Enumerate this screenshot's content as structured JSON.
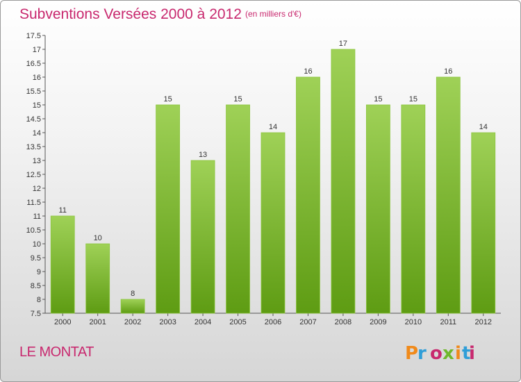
{
  "title": "Subventions Versées 2000 à 2012",
  "unit_note": "(en milliers d'€)",
  "commune": "LE MONTAT",
  "logo": {
    "text": "Proxiti",
    "colors": [
      "#f08a1a",
      "#2f9ed8",
      "#c8286e",
      "#6fb82b",
      "#f08a1a",
      "#2f9ed8",
      "#c8286e"
    ]
  },
  "colors": {
    "title": "#c8286e",
    "bar_top": "#9fd157",
    "bar_bottom": "#5e9c13"
  },
  "chart_data": {
    "type": "bar",
    "categories": [
      "2000",
      "2001",
      "2002",
      "2003",
      "2004",
      "2005",
      "2006",
      "2007",
      "2008",
      "2009",
      "2010",
      "2011",
      "2012"
    ],
    "values": [
      11,
      10,
      8,
      15,
      13,
      15,
      14,
      16,
      17,
      15,
      15,
      16,
      14
    ],
    "ylim": [
      7.5,
      17.5
    ],
    "yticks": [
      "7.5",
      "8",
      "8.5",
      "9",
      "9.5",
      "10",
      "10.5",
      "11",
      "11.5",
      "12",
      "12.5",
      "13",
      "13.5",
      "14",
      "14.5",
      "15",
      "15.5",
      "16",
      "16.5",
      "17",
      "17.5"
    ],
    "grid": false,
    "legend": "none"
  }
}
